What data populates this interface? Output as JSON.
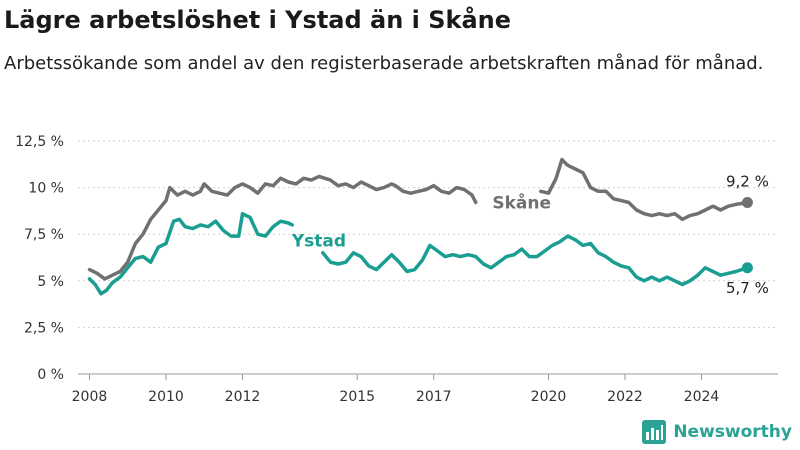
{
  "header": {
    "title": "Lägre arbetslöshet i Ystad än i Skåne",
    "subtitle": "Arbetssökande som andel av den registerbaserade arbetskraften månad för månad."
  },
  "brand": {
    "name": "Newsworthy",
    "icon": "bar-chart-logo-icon",
    "color": "#2aa394"
  },
  "chart_data": {
    "type": "line",
    "ylim": [
      0,
      12.5
    ],
    "xlim": [
      2007.7,
      2026
    ],
    "yticks": [
      0,
      2.5,
      5,
      7.5,
      10,
      12.5
    ],
    "ytick_labels": [
      "0 %",
      "2,5 %",
      "5 %",
      "7,5 %",
      "10 %",
      "12,5 %"
    ],
    "xticks": [
      2008,
      2010,
      2012,
      2015,
      2017,
      2020,
      2022,
      2024
    ],
    "xtick_labels": [
      "2008",
      "2010",
      "2012",
      "2015",
      "2017",
      "2020",
      "2022",
      "2024"
    ],
    "grid": true,
    "series": [
      {
        "name": "Skåne",
        "color": "#707070",
        "end_label": "9,2 %",
        "points": [
          [
            2008.0,
            5.6
          ],
          [
            2008.2,
            5.4
          ],
          [
            2008.4,
            5.1
          ],
          [
            2008.6,
            5.3
          ],
          [
            2008.8,
            5.5
          ],
          [
            2009.0,
            6.0
          ],
          [
            2009.2,
            7.0
          ],
          [
            2009.4,
            7.5
          ],
          [
            2009.6,
            8.3
          ],
          [
            2009.8,
            8.8
          ],
          [
            2010.0,
            9.3
          ],
          [
            2010.1,
            10.0
          ],
          [
            2010.3,
            9.6
          ],
          [
            2010.5,
            9.8
          ],
          [
            2010.7,
            9.6
          ],
          [
            2010.9,
            9.8
          ],
          [
            2011.0,
            10.2
          ],
          [
            2011.2,
            9.8
          ],
          [
            2011.4,
            9.7
          ],
          [
            2011.6,
            9.6
          ],
          [
            2011.8,
            10.0
          ],
          [
            2012.0,
            10.2
          ],
          [
            2012.2,
            10.0
          ],
          [
            2012.4,
            9.7
          ],
          [
            2012.6,
            10.2
          ],
          [
            2012.8,
            10.1
          ],
          [
            2013.0,
            10.5
          ],
          [
            2013.2,
            10.3
          ],
          [
            2013.4,
            10.2
          ],
          [
            2013.6,
            10.5
          ],
          [
            2013.8,
            10.4
          ],
          [
            2014.0,
            10.6
          ],
          [
            2014.3,
            10.4
          ],
          [
            2014.5,
            10.1
          ],
          [
            2014.7,
            10.2
          ],
          [
            2014.9,
            10.0
          ],
          [
            2015.1,
            10.3
          ],
          [
            2015.3,
            10.1
          ],
          [
            2015.5,
            9.9
          ],
          [
            2015.7,
            10.0
          ],
          [
            2015.9,
            10.2
          ],
          [
            2016.0,
            10.1
          ],
          [
            2016.2,
            9.8
          ],
          [
            2016.4,
            9.7
          ],
          [
            2016.6,
            9.8
          ],
          [
            2016.8,
            9.9
          ],
          [
            2017.0,
            10.1
          ],
          [
            2017.2,
            9.8
          ],
          [
            2017.4,
            9.7
          ],
          [
            2017.6,
            10.0
          ],
          [
            2017.8,
            9.9
          ],
          [
            2018.0,
            9.6
          ],
          [
            2018.1,
            9.2
          ],
          null,
          [
            2019.8,
            9.8
          ],
          [
            2020.0,
            9.7
          ],
          [
            2020.2,
            10.5
          ],
          [
            2020.35,
            11.5
          ],
          [
            2020.5,
            11.2
          ],
          [
            2020.7,
            11.0
          ],
          [
            2020.9,
            10.8
          ],
          [
            2021.1,
            10.0
          ],
          [
            2021.3,
            9.8
          ],
          [
            2021.5,
            9.8
          ],
          [
            2021.7,
            9.4
          ],
          [
            2021.9,
            9.3
          ],
          [
            2022.1,
            9.2
          ],
          [
            2022.3,
            8.8
          ],
          [
            2022.5,
            8.6
          ],
          [
            2022.7,
            8.5
          ],
          [
            2022.9,
            8.6
          ],
          [
            2023.1,
            8.5
          ],
          [
            2023.3,
            8.6
          ],
          [
            2023.5,
            8.3
          ],
          [
            2023.7,
            8.5
          ],
          [
            2023.9,
            8.6
          ],
          [
            2024.1,
            8.8
          ],
          [
            2024.3,
            9.0
          ],
          [
            2024.5,
            8.8
          ],
          [
            2024.7,
            9.0
          ],
          [
            2024.9,
            9.1
          ],
          [
            2025.2,
            9.2
          ]
        ]
      },
      {
        "name": "Ystad",
        "color": "#1a9e91",
        "end_label": "5,7 %",
        "points": [
          [
            2008.0,
            5.1
          ],
          [
            2008.15,
            4.8
          ],
          [
            2008.3,
            4.3
          ],
          [
            2008.45,
            4.5
          ],
          [
            2008.6,
            4.9
          ],
          [
            2008.8,
            5.2
          ],
          [
            2009.0,
            5.7
          ],
          [
            2009.2,
            6.2
          ],
          [
            2009.4,
            6.3
          ],
          [
            2009.6,
            6.0
          ],
          [
            2009.8,
            6.8
          ],
          [
            2010.0,
            7.0
          ],
          [
            2010.2,
            8.2
          ],
          [
            2010.35,
            8.3
          ],
          [
            2010.5,
            7.9
          ],
          [
            2010.7,
            7.8
          ],
          [
            2010.9,
            8.0
          ],
          [
            2011.1,
            7.9
          ],
          [
            2011.3,
            8.2
          ],
          [
            2011.5,
            7.7
          ],
          [
            2011.7,
            7.4
          ],
          [
            2011.9,
            7.4
          ],
          [
            2012.0,
            8.6
          ],
          [
            2012.2,
            8.4
          ],
          [
            2012.4,
            7.5
          ],
          [
            2012.6,
            7.4
          ],
          [
            2012.8,
            7.9
          ],
          [
            2013.0,
            8.2
          ],
          [
            2013.2,
            8.1
          ],
          [
            2013.3,
            8.0
          ],
          null,
          [
            2014.1,
            6.5
          ],
          [
            2014.3,
            6.0
          ],
          [
            2014.5,
            5.9
          ],
          [
            2014.7,
            6.0
          ],
          [
            2014.9,
            6.5
          ],
          [
            2015.1,
            6.3
          ],
          [
            2015.3,
            5.8
          ],
          [
            2015.5,
            5.6
          ],
          [
            2015.7,
            6.0
          ],
          [
            2015.9,
            6.4
          ],
          [
            2016.1,
            6.0
          ],
          [
            2016.3,
            5.5
          ],
          [
            2016.5,
            5.6
          ],
          [
            2016.7,
            6.1
          ],
          [
            2016.9,
            6.9
          ],
          [
            2017.1,
            6.6
          ],
          [
            2017.3,
            6.3
          ],
          [
            2017.5,
            6.4
          ],
          [
            2017.7,
            6.3
          ],
          [
            2017.9,
            6.4
          ],
          [
            2018.1,
            6.3
          ],
          [
            2018.3,
            5.9
          ],
          [
            2018.5,
            5.7
          ],
          [
            2018.7,
            6.0
          ],
          [
            2018.9,
            6.3
          ],
          [
            2019.1,
            6.4
          ],
          [
            2019.3,
            6.7
          ],
          [
            2019.5,
            6.3
          ],
          [
            2019.7,
            6.3
          ],
          [
            2019.9,
            6.6
          ],
          [
            2020.1,
            6.9
          ],
          [
            2020.3,
            7.1
          ],
          [
            2020.5,
            7.4
          ],
          [
            2020.7,
            7.2
          ],
          [
            2020.9,
            6.9
          ],
          [
            2021.1,
            7.0
          ],
          [
            2021.3,
            6.5
          ],
          [
            2021.5,
            6.3
          ],
          [
            2021.7,
            6.0
          ],
          [
            2021.9,
            5.8
          ],
          [
            2022.1,
            5.7
          ],
          [
            2022.3,
            5.2
          ],
          [
            2022.5,
            5.0
          ],
          [
            2022.7,
            5.2
          ],
          [
            2022.9,
            5.0
          ],
          [
            2023.1,
            5.2
          ],
          [
            2023.3,
            5.0
          ],
          [
            2023.5,
            4.8
          ],
          [
            2023.7,
            5.0
          ],
          [
            2023.9,
            5.3
          ],
          [
            2024.1,
            5.7
          ],
          [
            2024.3,
            5.5
          ],
          [
            2024.5,
            5.3
          ],
          [
            2024.7,
            5.4
          ],
          [
            2024.9,
            5.5
          ],
          [
            2025.2,
            5.7
          ]
        ],
        "series_label_at": [
          2013.5,
          7.5
        ]
      }
    ],
    "inline_labels": [
      {
        "series": "Skåne",
        "text": "Skåne",
        "x": 2019.3,
        "y": 9.2
      },
      {
        "series": "Ystad",
        "text": "Ystad",
        "x": 2014.0,
        "y": 7.15
      }
    ]
  }
}
